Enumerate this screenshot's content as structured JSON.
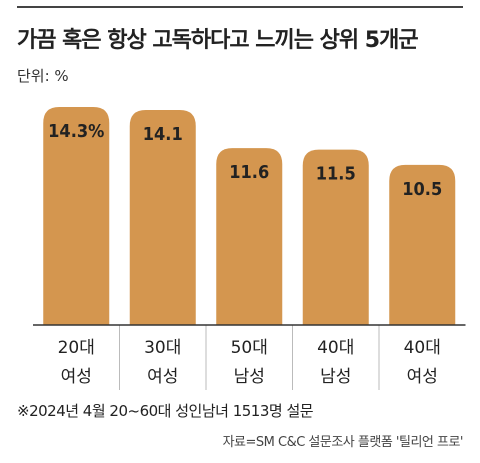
{
  "chart_data": {
    "type": "bar",
    "title": "가끔 혹은 항상 고독하다고 느끼는 상위 5개군",
    "unit_label": "단위: %",
    "categories": [
      [
        "20대",
        "여성"
      ],
      [
        "30대",
        "여성"
      ],
      [
        "50대",
        "남성"
      ],
      [
        "40대",
        "남성"
      ],
      [
        "40대",
        "여성"
      ]
    ],
    "values": [
      14.3,
      14.1,
      11.6,
      11.5,
      10.5
    ],
    "value_labels": [
      "14.3%",
      "14.1",
      "11.6",
      "11.5",
      "10.5"
    ],
    "ylim": [
      0,
      15
    ],
    "bar_color": "#d4964f",
    "grid": false,
    "footnote": "※2024년 4월 20~60대 성인남녀 1513명 설문",
    "source": "자료=SM C&C 설문조사 플랫폼 '틸리언 프로'"
  }
}
